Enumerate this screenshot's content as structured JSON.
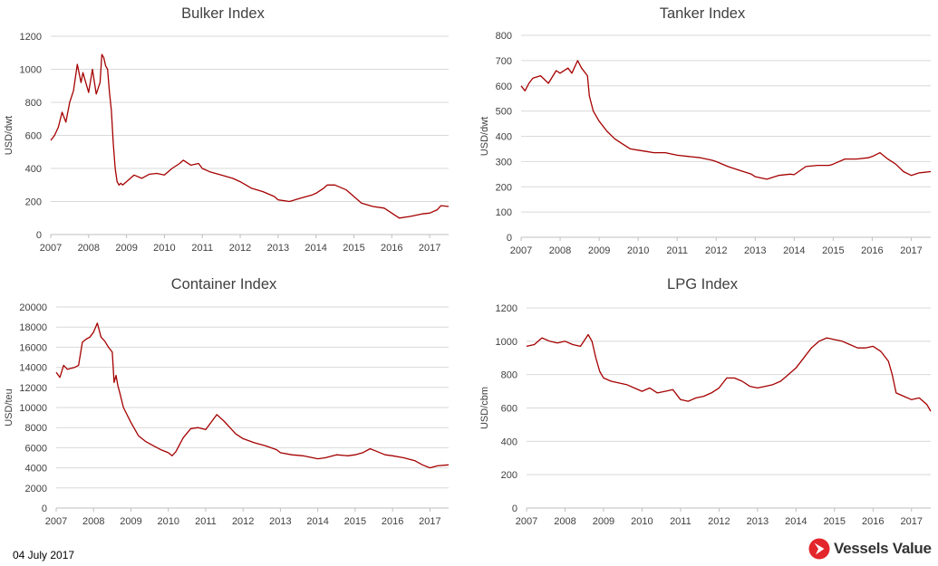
{
  "footer": {
    "date": "04 July 2017",
    "brand": "Vessels Value"
  },
  "chart_data": [
    {
      "type": "line",
      "title": "Bulker Index",
      "ylabel": "USD/dwt",
      "ylim": [
        0,
        1200
      ],
      "yticks": [
        0,
        200,
        400,
        600,
        800,
        1000,
        1200
      ],
      "xlim": [
        2007.0,
        2017.5
      ],
      "xticks": [
        2007,
        2008,
        2009,
        2010,
        2011,
        2012,
        2013,
        2014,
        2015,
        2016,
        2017
      ],
      "grid": true,
      "series": [
        {
          "color": "#a50000",
          "x": [
            2007.0,
            2007.1,
            2007.2,
            2007.3,
            2007.4,
            2007.5,
            2007.6,
            2007.7,
            2007.8,
            2007.85,
            2008.0,
            2008.1,
            2008.2,
            2008.3,
            2008.35,
            2008.4,
            2008.45,
            2008.5,
            2008.55,
            2008.6,
            2008.65,
            2008.7,
            2008.75,
            2008.8,
            2008.85,
            2008.9,
            2009.0,
            2009.2,
            2009.4,
            2009.6,
            2009.8,
            2010.0,
            2010.2,
            2010.4,
            2010.5,
            2010.7,
            2010.9,
            2011.0,
            2011.2,
            2011.5,
            2011.8,
            2012.0,
            2012.3,
            2012.6,
            2012.9,
            2013.0,
            2013.3,
            2013.6,
            2013.9,
            2014.0,
            2014.2,
            2014.3,
            2014.5,
            2014.8,
            2015.0,
            2015.2,
            2015.5,
            2015.8,
            2016.0,
            2016.2,
            2016.5,
            2016.8,
            2017.0,
            2017.2,
            2017.3,
            2017.5
          ],
          "y": [
            570,
            600,
            650,
            740,
            680,
            800,
            870,
            1030,
            920,
            980,
            860,
            1000,
            850,
            920,
            1090,
            1070,
            1020,
            1000,
            860,
            750,
            550,
            400,
            320,
            300,
            310,
            300,
            320,
            360,
            340,
            365,
            370,
            360,
            400,
            430,
            450,
            420,
            430,
            400,
            380,
            360,
            340,
            320,
            280,
            260,
            230,
            210,
            200,
            220,
            240,
            250,
            280,
            300,
            300,
            270,
            230,
            190,
            170,
            160,
            130,
            100,
            110,
            125,
            130,
            150,
            175,
            170
          ]
        }
      ]
    },
    {
      "type": "line",
      "title": "Tanker Index",
      "ylabel": "USD/dwt",
      "ylim": [
        0,
        800
      ],
      "yticks": [
        0,
        100,
        200,
        300,
        400,
        500,
        600,
        700,
        800
      ],
      "xlim": [
        2007.0,
        2017.5
      ],
      "xticks": [
        2007,
        2008,
        2009,
        2010,
        2011,
        2012,
        2013,
        2014,
        2015,
        2016,
        2017
      ],
      "grid": true,
      "series": [
        {
          "color": "#a50000",
          "x": [
            2007.0,
            2007.1,
            2007.2,
            2007.3,
            2007.5,
            2007.7,
            2007.9,
            2008.0,
            2008.2,
            2008.3,
            2008.45,
            2008.55,
            2008.7,
            2008.75,
            2008.85,
            2009.0,
            2009.2,
            2009.4,
            2009.6,
            2009.8,
            2010.0,
            2010.2,
            2010.4,
            2010.7,
            2011.0,
            2011.3,
            2011.6,
            2011.9,
            2012.0,
            2012.3,
            2012.6,
            2012.9,
            2013.0,
            2013.3,
            2013.6,
            2013.9,
            2014.0,
            2014.3,
            2014.6,
            2014.9,
            2015.0,
            2015.3,
            2015.6,
            2015.9,
            2016.0,
            2016.2,
            2016.4,
            2016.6,
            2016.8,
            2017.0,
            2017.2,
            2017.5
          ],
          "y": [
            600,
            580,
            610,
            630,
            640,
            610,
            660,
            650,
            670,
            650,
            700,
            670,
            640,
            560,
            500,
            460,
            420,
            390,
            370,
            350,
            345,
            340,
            335,
            335,
            325,
            320,
            315,
            305,
            300,
            280,
            265,
            250,
            240,
            230,
            245,
            250,
            248,
            280,
            285,
            285,
            290,
            310,
            310,
            315,
            320,
            335,
            310,
            290,
            260,
            245,
            255,
            260
          ]
        }
      ]
    },
    {
      "type": "line",
      "title": "Container Index",
      "ylabel": "USD/teu",
      "ylim": [
        0,
        20000
      ],
      "yticks": [
        0,
        2000,
        4000,
        6000,
        8000,
        10000,
        12000,
        14000,
        16000,
        18000,
        20000
      ],
      "xlim": [
        2007.0,
        2017.5
      ],
      "xticks": [
        2007,
        2008,
        2009,
        2010,
        2011,
        2012,
        2013,
        2014,
        2015,
        2016,
        2017
      ],
      "grid": true,
      "series": [
        {
          "color": "#a50000",
          "x": [
            2007.0,
            2007.1,
            2007.2,
            2007.3,
            2007.5,
            2007.6,
            2007.7,
            2007.8,
            2007.9,
            2008.0,
            2008.1,
            2008.2,
            2008.3,
            2008.4,
            2008.5,
            2008.55,
            2008.6,
            2008.65,
            2008.7,
            2008.8,
            2009.0,
            2009.2,
            2009.4,
            2009.6,
            2009.8,
            2010.0,
            2010.1,
            2010.2,
            2010.4,
            2010.6,
            2010.8,
            2011.0,
            2011.2,
            2011.3,
            2011.5,
            2011.8,
            2012.0,
            2012.3,
            2012.6,
            2012.9,
            2013.0,
            2013.3,
            2013.6,
            2014.0,
            2014.2,
            2014.5,
            2014.8,
            2015.0,
            2015.2,
            2015.4,
            2015.6,
            2015.8,
            2016.0,
            2016.3,
            2016.6,
            2016.8,
            2017.0,
            2017.2,
            2017.5
          ],
          "y": [
            13500,
            13000,
            14200,
            13800,
            14000,
            14200,
            16500,
            16800,
            17000,
            17500,
            18400,
            17000,
            16600,
            16000,
            15500,
            12500,
            13200,
            12200,
            11500,
            10000,
            8500,
            7200,
            6600,
            6200,
            5800,
            5500,
            5200,
            5600,
            7000,
            7900,
            8000,
            7800,
            8800,
            9300,
            8600,
            7400,
            6900,
            6500,
            6200,
            5800,
            5500,
            5300,
            5200,
            4900,
            5000,
            5300,
            5200,
            5300,
            5500,
            5900,
            5600,
            5300,
            5200,
            5000,
            4700,
            4300,
            4000,
            4200,
            4300
          ]
        }
      ]
    },
    {
      "type": "line",
      "title": "LPG Index",
      "ylabel": "USD/cbm",
      "ylim": [
        0,
        1200
      ],
      "yticks": [
        0,
        200,
        400,
        600,
        800,
        1000,
        1200
      ],
      "xlim": [
        2007.0,
        2017.5
      ],
      "xticks": [
        2007,
        2008,
        2009,
        2010,
        2011,
        2012,
        2013,
        2014,
        2015,
        2016,
        2017
      ],
      "grid": true,
      "series": [
        {
          "color": "#a50000",
          "x": [
            2007.0,
            2007.2,
            2007.4,
            2007.6,
            2007.8,
            2008.0,
            2008.2,
            2008.4,
            2008.6,
            2008.7,
            2008.8,
            2008.9,
            2009.0,
            2009.2,
            2009.4,
            2009.6,
            2009.8,
            2010.0,
            2010.2,
            2010.4,
            2010.6,
            2010.8,
            2011.0,
            2011.2,
            2011.4,
            2011.6,
            2011.8,
            2012.0,
            2012.2,
            2012.4,
            2012.6,
            2012.8,
            2013.0,
            2013.2,
            2013.4,
            2013.6,
            2013.8,
            2014.0,
            2014.2,
            2014.4,
            2014.6,
            2014.8,
            2015.0,
            2015.2,
            2015.4,
            2015.6,
            2015.8,
            2016.0,
            2016.2,
            2016.4,
            2016.5,
            2016.6,
            2016.8,
            2017.0,
            2017.2,
            2017.4,
            2017.5
          ],
          "y": [
            970,
            980,
            1020,
            1000,
            990,
            1000,
            980,
            970,
            1040,
            1000,
            900,
            820,
            780,
            760,
            750,
            740,
            720,
            700,
            720,
            690,
            700,
            710,
            650,
            640,
            660,
            670,
            690,
            720,
            780,
            780,
            760,
            730,
            720,
            730,
            740,
            760,
            800,
            840,
            900,
            960,
            1000,
            1020,
            1010,
            1000,
            980,
            960,
            960,
            970,
            940,
            880,
            800,
            690,
            670,
            650,
            660,
            620,
            580
          ]
        }
      ]
    }
  ]
}
